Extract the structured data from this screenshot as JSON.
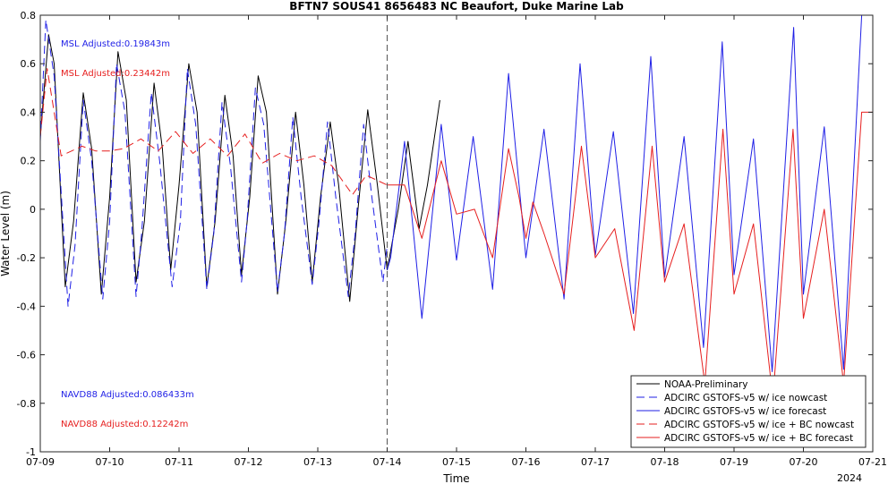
{
  "chart_data": {
    "type": "line",
    "title": "BFTN7 SOUS41 8656483 NC Beaufort, Duke Marine Lab",
    "xlabel": "Time",
    "ylabel": "Water Level (m)",
    "year_label": "2024",
    "xlim": [
      9,
      21
    ],
    "ylim": [
      -1,
      0.8
    ],
    "x_ticks": [
      9,
      10,
      11,
      12,
      13,
      14,
      15,
      16,
      17,
      18,
      19,
      20,
      21
    ],
    "x_tick_labels": [
      "07-09",
      "07-10",
      "07-11",
      "07-12",
      "07-13",
      "07-14",
      "07-15",
      "07-16",
      "07-17",
      "07-18",
      "07-19",
      "07-20",
      "07-21"
    ],
    "y_ticks": [
      -1,
      -0.8,
      -0.6,
      -0.4,
      -0.2,
      0,
      0.2,
      0.4,
      0.6,
      0.8
    ],
    "y_tick_labels": [
      "-1",
      "-0.8",
      "-0.6",
      "-0.4",
      "-0.2",
      "0",
      "0.2",
      "0.4",
      "0.6",
      "0.8"
    ],
    "forecast_start": 14,
    "grid": false,
    "legend_position": "bottom-right",
    "annotations": [
      {
        "text": "MSL Adjusted:0.19843m",
        "color": "#1f1fe6"
      },
      {
        "text": "MSL Adjusted:0.23442m",
        "color": "#e61f1f"
      },
      {
        "text": "NAVD88 Adjusted:0.086433m",
        "color": "#1f1fe6"
      },
      {
        "text": "NAVD88 Adjusted:0.12242m",
        "color": "#e61f1f"
      }
    ],
    "series": [
      {
        "name": "NOAA-Preliminary",
        "color": "#000000",
        "dash": "solid",
        "x": [
          9.0,
          9.12,
          9.2,
          9.36,
          9.48,
          9.62,
          9.74,
          9.88,
          10.0,
          10.12,
          10.24,
          10.38,
          10.5,
          10.64,
          10.76,
          10.88,
          11.0,
          11.14,
          11.26,
          11.4,
          11.52,
          11.66,
          11.78,
          11.9,
          12.02,
          12.14,
          12.26,
          12.42,
          12.54,
          12.68,
          12.8,
          12.92,
          13.04,
          13.18,
          13.3,
          13.46,
          13.58,
          13.72,
          13.86,
          14.0,
          14.16,
          14.3,
          14.46,
          14.58,
          14.76
        ],
        "y": [
          0.3,
          0.72,
          0.6,
          -0.32,
          -0.05,
          0.48,
          0.25,
          -0.35,
          0.05,
          0.65,
          0.45,
          -0.3,
          -0.05,
          0.52,
          0.25,
          -0.25,
          0.1,
          0.6,
          0.4,
          -0.32,
          -0.05,
          0.47,
          0.22,
          -0.27,
          0.05,
          0.55,
          0.4,
          -0.35,
          -0.05,
          0.4,
          0.1,
          -0.3,
          0.05,
          0.36,
          0.1,
          -0.38,
          0.0,
          0.41,
          0.1,
          -0.25,
          0.0,
          0.28,
          -0.08,
          0.1,
          0.45
        ]
      },
      {
        "name": "ADCIRC GSTOFS-v5 w/ ice nowcast",
        "color": "#1f1fe6",
        "dash": "long",
        "x": [
          9.0,
          9.08,
          9.2,
          9.4,
          9.5,
          9.62,
          9.74,
          9.9,
          10.0,
          10.1,
          10.22,
          10.38,
          10.46,
          10.6,
          10.72,
          10.9,
          11.02,
          11.12,
          11.24,
          11.4,
          11.5,
          11.62,
          11.74,
          11.9,
          11.98,
          12.1,
          12.22,
          12.42,
          12.52,
          12.64,
          12.76,
          12.92,
          13.02,
          13.14,
          13.26,
          13.44,
          13.54,
          13.66,
          13.78,
          13.94,
          14.0
        ],
        "y": [
          0.28,
          0.78,
          0.55,
          -0.4,
          -0.15,
          0.45,
          0.2,
          -0.37,
          -0.05,
          0.6,
          0.4,
          -0.36,
          -0.1,
          0.48,
          0.2,
          -0.32,
          -0.05,
          0.58,
          0.35,
          -0.33,
          -0.1,
          0.44,
          0.18,
          -0.3,
          -0.05,
          0.5,
          0.35,
          -0.34,
          -0.1,
          0.38,
          0.05,
          -0.31,
          -0.05,
          0.36,
          0.05,
          -0.36,
          -0.1,
          0.35,
          0.05,
          -0.3,
          -0.15
        ]
      },
      {
        "name": "ADCIRC GSTOFS-v5 w/ ice forecast",
        "color": "#1f1fe6",
        "dash": "solid",
        "x": [
          14.0,
          14.05,
          14.25,
          14.5,
          14.78,
          15.0,
          15.24,
          15.52,
          15.75,
          16.0,
          16.26,
          16.55,
          16.78,
          17.0,
          17.26,
          17.55,
          17.8,
          18.0,
          18.28,
          18.56,
          18.83,
          19.0,
          19.28,
          19.55,
          19.86,
          20.0,
          20.3,
          20.58,
          20.84,
          21.0
        ],
        "y": [
          -0.25,
          -0.2,
          0.28,
          -0.45,
          0.35,
          -0.21,
          0.3,
          -0.33,
          0.56,
          -0.2,
          0.33,
          -0.37,
          0.6,
          -0.19,
          0.32,
          -0.43,
          0.63,
          -0.28,
          0.3,
          -0.57,
          0.69,
          -0.27,
          0.29,
          -0.67,
          0.75,
          -0.35,
          0.34,
          -0.66,
          0.8,
          0.8
        ]
      },
      {
        "name": "ADCIRC GSTOFS-v5 w/ ice + BC nowcast",
        "color": "#e61f1f",
        "dash": "long",
        "x": [
          9.0,
          9.1,
          9.3,
          9.6,
          9.8,
          10.0,
          10.2,
          10.45,
          10.7,
          10.95,
          11.2,
          11.45,
          11.7,
          11.95,
          12.2,
          12.45,
          12.7,
          12.95,
          13.2,
          13.5,
          13.7,
          14.0
        ],
        "y": [
          0.3,
          0.58,
          0.22,
          0.26,
          0.24,
          0.24,
          0.25,
          0.29,
          0.24,
          0.32,
          0.23,
          0.29,
          0.22,
          0.31,
          0.19,
          0.23,
          0.2,
          0.22,
          0.18,
          0.06,
          0.14,
          0.1
        ]
      },
      {
        "name": "ADCIRC GSTOFS-v5 w/ ice + BC forecast",
        "color": "#e61f1f",
        "dash": "solid",
        "x": [
          14.0,
          14.25,
          14.5,
          14.78,
          15.0,
          15.26,
          15.52,
          15.75,
          15.9,
          16.0,
          16.1,
          16.26,
          16.55,
          16.8,
          17.0,
          17.28,
          17.56,
          17.82,
          18.0,
          18.28,
          18.58,
          18.84,
          19.0,
          19.28,
          19.56,
          19.85,
          20.0,
          20.3,
          20.58,
          20.84,
          21.0
        ],
        "y": [
          0.1,
          0.1,
          -0.12,
          0.2,
          -0.02,
          0.0,
          -0.2,
          0.25,
          0.05,
          -0.12,
          0.03,
          -0.1,
          -0.35,
          0.26,
          -0.2,
          -0.08,
          -0.5,
          0.26,
          -0.3,
          -0.06,
          -0.72,
          0.33,
          -0.35,
          -0.06,
          -0.78,
          0.33,
          -0.45,
          0.0,
          -0.72,
          0.4,
          0.4
        ]
      }
    ]
  }
}
